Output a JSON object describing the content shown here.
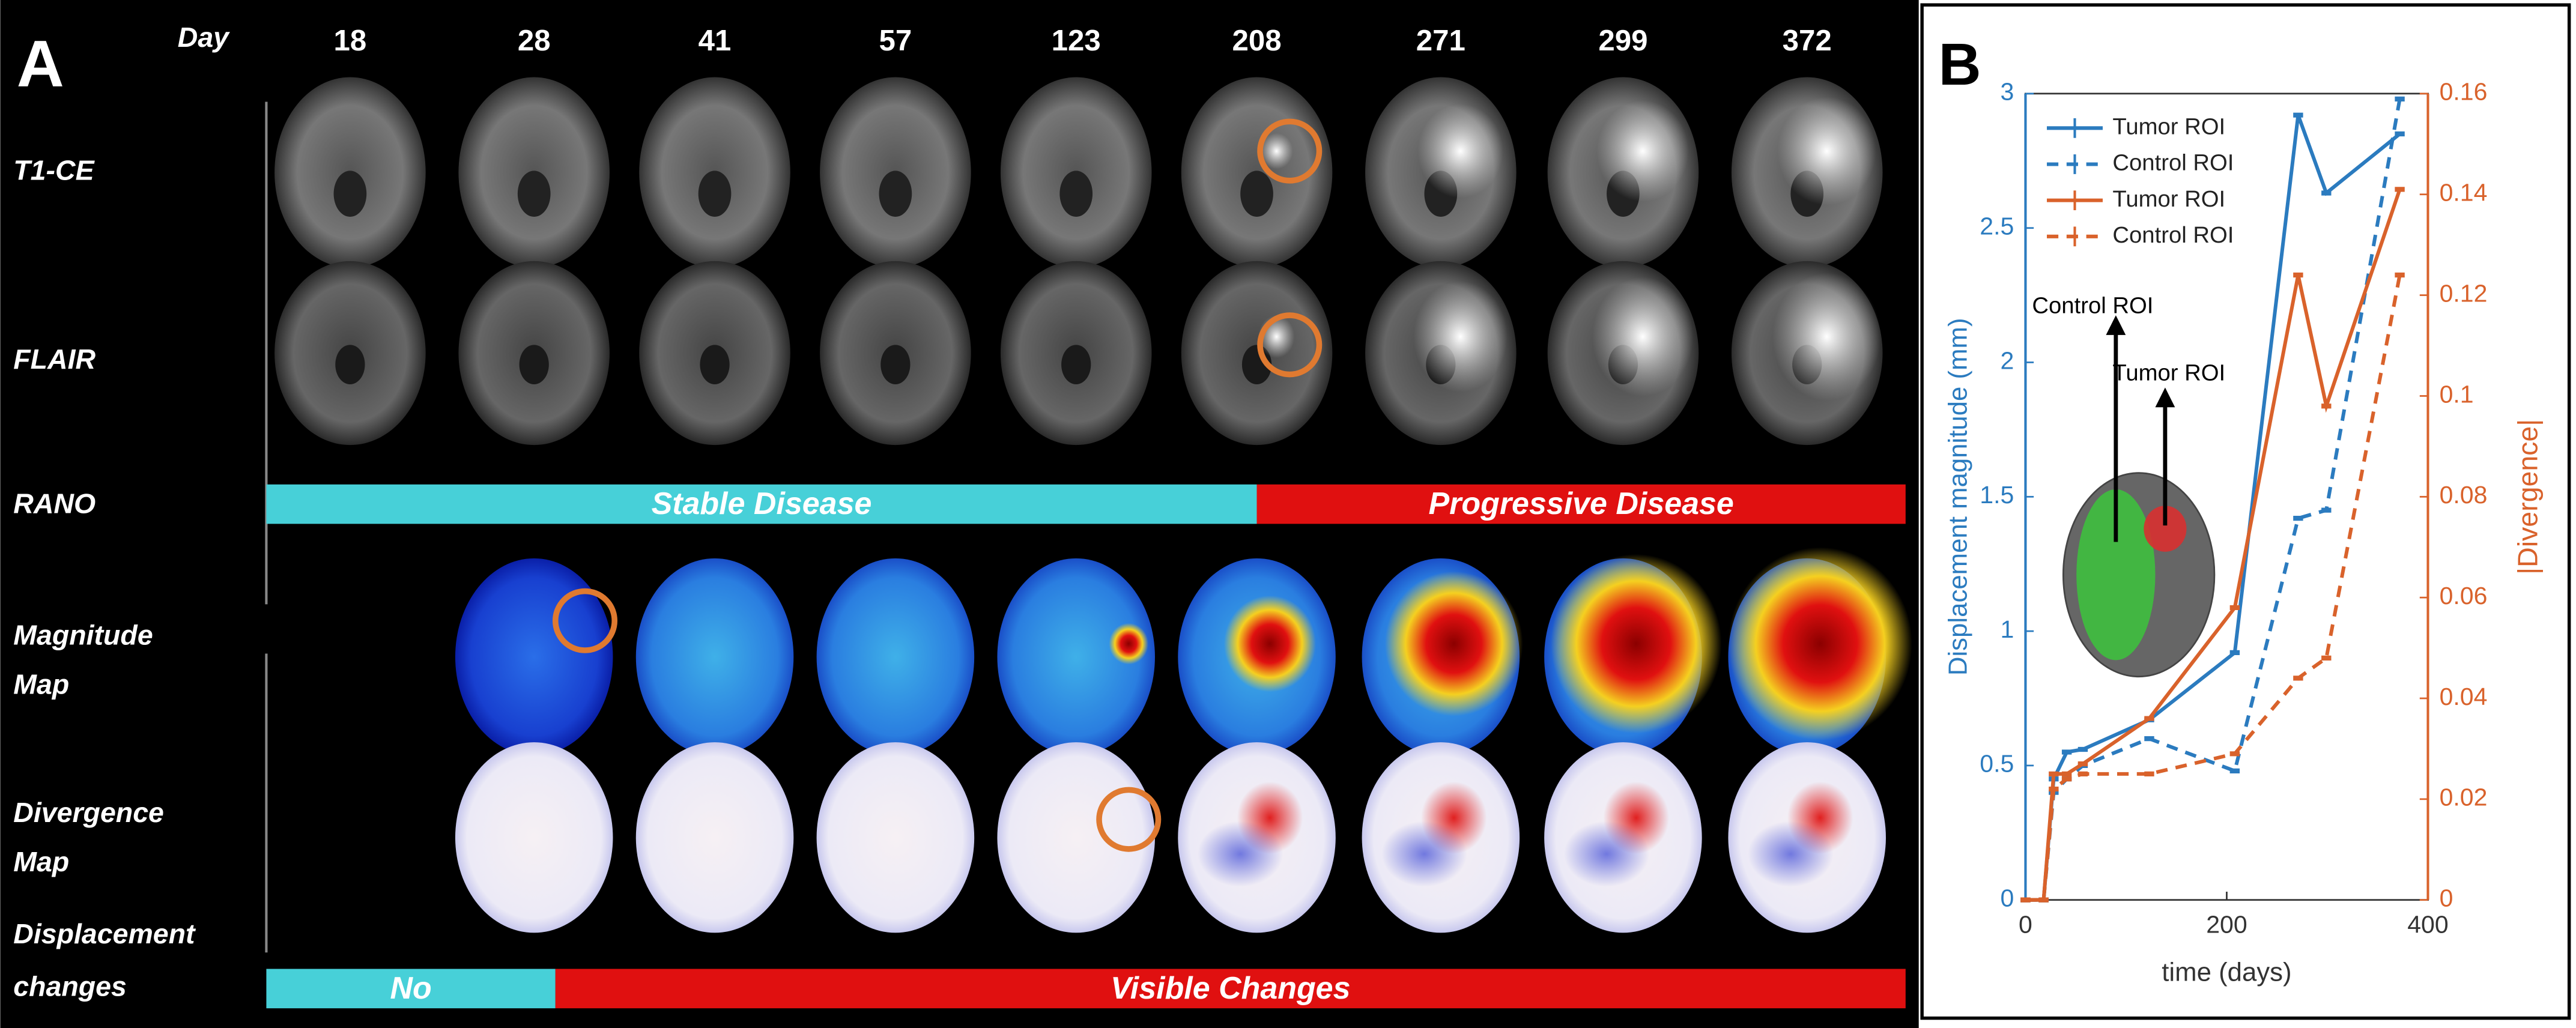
{
  "panel_a": {
    "label": "A",
    "day_label": "Day",
    "days": [
      18,
      28,
      41,
      57,
      123,
      208,
      271,
      299,
      372
    ],
    "row_labels": [
      [
        "T1-CE"
      ],
      [
        "FLAIR"
      ],
      [
        "RANO"
      ],
      [
        "Magnitude",
        "Map"
      ],
      [
        "Divergence",
        "Map"
      ],
      [
        "Displacement",
        "changes"
      ]
    ],
    "rano": [
      "Stable Disease",
      "Progressive Disease"
    ],
    "changes": [
      "No",
      "Visible Changes"
    ]
  },
  "chart_data": {
    "type": "line",
    "panel_label": "B",
    "x_label": "time (days)",
    "y_label": "Displacement magnitude (mm)",
    "y2_label": "|Divergence|",
    "x": [
      0,
      18,
      28,
      41,
      57,
      123,
      208,
      271,
      299,
      372
    ],
    "series": [
      {
        "name": "Tumor ROI",
        "color": "#2b7bbf",
        "line_style": "solid",
        "values": [
          0,
          0,
          0.45,
          0.55,
          0.56,
          0.67,
          0.92,
          2.92,
          2.63,
          2.85
        ]
      },
      {
        "name": "Control ROI",
        "color": "#2b7bbf",
        "line_style": "dashed",
        "values": [
          0,
          0,
          0.4,
          0.45,
          0.5,
          0.6,
          0.48,
          1.42,
          1.45,
          2.98
        ]
      },
      {
        "name": "Tumor ROI",
        "color": "#d9622b",
        "line_style": "solid",
        "axis": "y2",
        "values": [
          0,
          0,
          0.025,
          0.025,
          0.027,
          0.036,
          0.058,
          0.124,
          0.098,
          0.141
        ]
      },
      {
        "name": "Control ROI",
        "color": "#d9622b",
        "line_style": "dashed",
        "axis": "y2",
        "values": [
          0,
          0,
          0.022,
          0.024,
          0.025,
          0.025,
          0.029,
          0.044,
          0.048,
          0.124
        ]
      }
    ],
    "xlim": [
      0,
      400
    ],
    "xticks": [
      0,
      200,
      400
    ],
    "ylim": [
      0,
      3
    ],
    "yticks": [
      0,
      0.5,
      1,
      1.5,
      2,
      2.5,
      3
    ],
    "y2lim": [
      0,
      0.16
    ],
    "y2ticks": [
      0,
      0.02,
      0.04,
      0.06,
      0.08,
      0.1,
      0.12,
      0.14,
      0.16
    ],
    "legend": "upper-left",
    "annotations": [
      "Control ROI",
      "Tumor ROI"
    ]
  }
}
